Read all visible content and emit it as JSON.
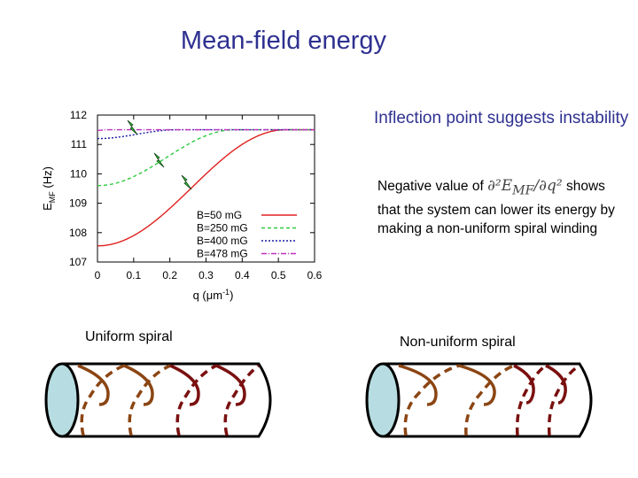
{
  "title": "Mean-field energy",
  "annotation_main": "Inflection point suggests instability",
  "annotation_detail": {
    "prefix": "Negative value of",
    "formula": "∂²E",
    "formula_sub": "MF",
    "formula_rest": "/∂q²",
    "suffix": "shows that  the system can lower its energy by making a non-uniform spiral winding"
  },
  "spiral_labels": {
    "uniform": "Uniform spiral",
    "nonuniform": "Non-uniform spiral"
  },
  "colors": {
    "title": "#2e3090",
    "tube": "#b7dde2",
    "spiral_brown": "#8b4513",
    "spiral_dark": "#7a1010"
  },
  "chart_data": {
    "type": "line",
    "title": "",
    "xlabel": "q (μm",
    "xlabel_sup": "-1",
    "xlabel_close": ")",
    "ylabel": "E",
    "ylabel_sub": "MF",
    "ylabel_unit": " (Hz)",
    "xlim": [
      0,
      0.6
    ],
    "ylim": [
      107,
      112
    ],
    "xticks": [
      "0",
      "0.1",
      "0.2",
      "0.3",
      "0.4",
      "0.5",
      "0.6"
    ],
    "yticks": [
      "107",
      "108",
      "109",
      "110",
      "111",
      "112"
    ],
    "legend_position": "bottom-right",
    "series": [
      {
        "name": "B=50 mG",
        "color": "#e02020",
        "dash": "none",
        "q0": 0.52,
        "min": 107.55,
        "max": 111.5
      },
      {
        "name": "B=250 mG",
        "color": "#2ecc40",
        "dash": "4,3",
        "q0": 0.38,
        "min": 109.6,
        "max": 111.5
      },
      {
        "name": "B=400 mG",
        "color": "#1a1aa0",
        "dash": "2,2",
        "q0": 0.22,
        "min": 111.2,
        "max": 111.5
      },
      {
        "name": "B=478 mG",
        "color": "#c030c0",
        "dash": "6,2,1,2",
        "q0": 0.03,
        "min": 111.48,
        "max": 111.5
      }
    ]
  }
}
